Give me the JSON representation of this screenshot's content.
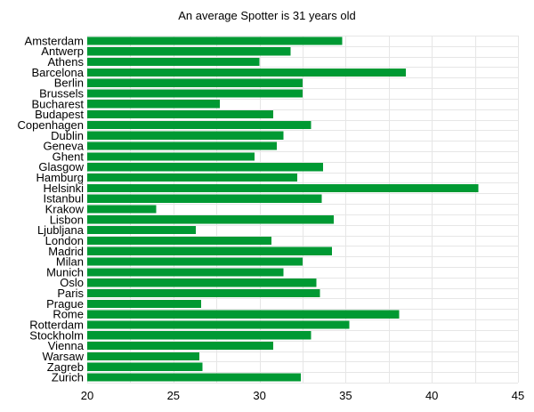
{
  "chart_data": {
    "type": "bar",
    "orientation": "horizontal",
    "title": "An average Spotter is 31 years old",
    "xlabel": "",
    "ylabel": "",
    "xlim": [
      20,
      45
    ],
    "xticks": [
      20,
      25,
      30,
      35,
      40,
      45
    ],
    "grid": true,
    "bar_color": "#009933",
    "categories": [
      "Amsterdam",
      "Antwerp",
      "Athens",
      "Barcelona",
      "Berlin",
      "Brussels",
      "Bucharest",
      "Budapest",
      "Copenhagen",
      "Dublin",
      "Geneva",
      "Ghent",
      "Glasgow",
      "Hamburg",
      "Helsinki",
      "Istanbul",
      "Krakow",
      "Lisbon",
      "Ljubljana",
      "London",
      "Madrid",
      "Milan",
      "Munich",
      "Oslo",
      "Paris",
      "Prague",
      "Rome",
      "Rotterdam",
      "Stockholm",
      "Vienna",
      "Warsaw",
      "Zagreb",
      "Zurich"
    ],
    "values": [
      34.8,
      31.8,
      30.0,
      38.5,
      32.5,
      32.5,
      27.7,
      30.8,
      33.0,
      31.4,
      31.0,
      29.7,
      33.7,
      32.2,
      42.7,
      33.6,
      24.0,
      34.3,
      26.3,
      30.7,
      34.2,
      32.5,
      31.4,
      33.3,
      33.5,
      26.6,
      38.1,
      35.2,
      33.0,
      30.8,
      26.5,
      26.7,
      32.4
    ]
  }
}
